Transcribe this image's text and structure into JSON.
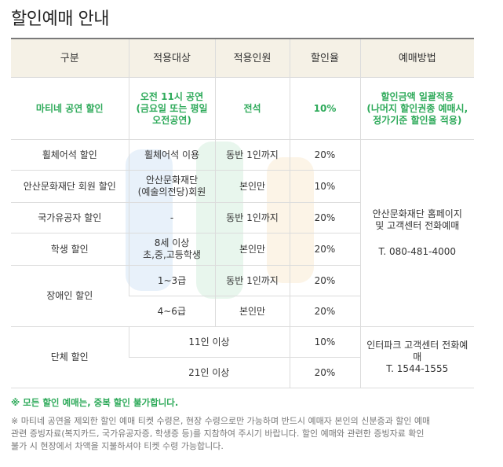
{
  "page": {
    "title": "할인예매 안내"
  },
  "table": {
    "headers": [
      "구분",
      "적용대상",
      "적용인원",
      "할인율",
      "예매방법"
    ],
    "highlight_row": {
      "category": "마티네 공연 할인",
      "target": "오전 11시 공연\n(금요일 또는 평일\n오전공연)",
      "people": "전석",
      "rate": "10%",
      "method": "할인금액 일괄적용\n(나머지 할인권종 예매시,\n정가기준 할인율 적용)"
    },
    "rows": [
      {
        "category": "휠체어석 할인",
        "target": "휠체어석 이용",
        "people": "동반 1인까지",
        "rate": "20%"
      },
      {
        "category": "안산문화재단 회원 할인",
        "target": "안산문화재단\n(예술의전당)회원",
        "people": "본인만",
        "rate": "10%"
      },
      {
        "category": "국가유공자 할인",
        "target": "-",
        "people": "동반 1인까지",
        "rate": "20%"
      },
      {
        "category": "학생 할인",
        "target": "8세 이상\n초,중,고등학생",
        "people": "본인만",
        "rate": "20%"
      }
    ],
    "disabled": {
      "category": "장애인 할인",
      "rows": [
        {
          "target": "1~3급",
          "people": "동반 1인까지",
          "rate": "20%"
        },
        {
          "target": "4~6급",
          "people": "본인만",
          "rate": "20%"
        }
      ]
    },
    "method_site": {
      "line1": "안산문화재단 홈페이지\n및 고객센터 전화예매",
      "phone": "T. 080-481-4000"
    },
    "group": {
      "category": "단체 할인",
      "rows": [
        {
          "size": "11인 이상",
          "rate": "10%"
        },
        {
          "size": "21인 이상",
          "rate": "20%"
        }
      ],
      "method": "인터파크 고객센터 전화예매\nT. 1544-1555"
    }
  },
  "notes": {
    "green": "※ 모든 할인 예매는, 중복 할인 불가합니다.",
    "gray": "※ 마티네 공연을 제외한 할인 예매 티켓 수령은, 현장 수령으로만 가능하며 반드시 예매자 본인의 신분증과 할인 예매\n관련 증빙자료(복지카드, 국가유공자증, 학생증 등)를 지참하여 주시기 바랍니다. 할인 예매와 관련한 증빙자료 확인\n불가 시 현장에서 차액을 지불하셔야 티켓 수령 가능합니다."
  },
  "colors": {
    "accent_green": "#2eaa5a",
    "header_bg": "#f5f1e6"
  }
}
